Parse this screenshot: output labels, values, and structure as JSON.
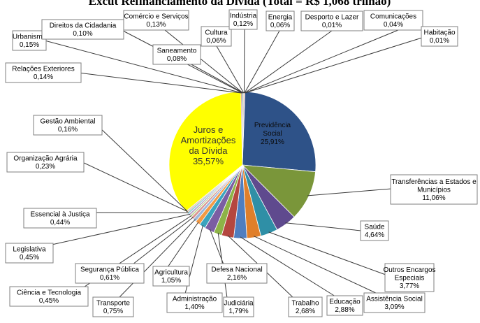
{
  "chart_data": {
    "type": "pie",
    "title": "Excut Refinanciamento da Dívida (Total = R$ 1,068 trilhão)",
    "slices": [
      {
        "label": "Previdência Social",
        "value": 25.91,
        "value_text": "25,91%",
        "color": "#2E5288"
      },
      {
        "label": "Transferências a Estados e Municípios",
        "value": 11.06,
        "value_text": "11,06%",
        "color": "#7A963A"
      },
      {
        "label": "Saúde",
        "value": 4.64,
        "value_text": "4,64%",
        "color": "#5F4A8E"
      },
      {
        "label": "Outros Encargos Especiais",
        "value": 3.77,
        "value_text": "3,77%",
        "color": "#2F8FA6"
      },
      {
        "label": "Assistência Social",
        "value": 3.09,
        "value_text": "3,09%",
        "color": "#E07F2A"
      },
      {
        "label": "Educação",
        "value": 2.88,
        "value_text": "2,88%",
        "color": "#4F7EC0"
      },
      {
        "label": "Trabalho",
        "value": 2.68,
        "value_text": "2,68%",
        "color": "#B5473F"
      },
      {
        "label": "Judiciária",
        "value": 1.79,
        "value_text": "1,79%",
        "color": "#8DB347"
      },
      {
        "label": "Defesa Nacional",
        "value": 2.16,
        "value_text": "2,16%",
        "color": "#7B5EA3"
      },
      {
        "label": "Administração",
        "value": 1.4,
        "value_text": "1,40%",
        "color": "#3AA3BE"
      },
      {
        "label": "Agricultura",
        "value": 1.05,
        "value_text": "1,05%",
        "color": "#F39A45"
      },
      {
        "label": "Transporte",
        "value": 0.75,
        "value_text": "0,75%",
        "color": "#9DB8DC"
      },
      {
        "label": "Segurança Pública",
        "value": 0.61,
        "value_text": "0,61%",
        "color": "#D99592"
      },
      {
        "label": "Ciência e Tecnologia",
        "value": 0.45,
        "value_text": "0,45%",
        "color": "#C2D69B"
      },
      {
        "label": "Legislativa",
        "value": 0.45,
        "value_text": "0,45%",
        "color": "#B3A2C7"
      },
      {
        "label": "Essencial à Justiça",
        "value": 0.44,
        "value_text": "0,44%",
        "color": "#92CDDC"
      },
      {
        "label": "Organização Agrária",
        "value": 0.23,
        "value_text": "0,23%",
        "color": "#FAC090"
      },
      {
        "label": "Gestão Ambiental",
        "value": 0.16,
        "value_text": "0,16%",
        "color": "#95B3D7"
      },
      {
        "label": "Juros e Amortizações da Dívida",
        "value": 35.57,
        "value_text": "35,57%",
        "color": "#FFFF00"
      },
      {
        "label": "Relações Exteriores",
        "value": 0.14,
        "value_text": "0,14%",
        "color": "#C0504D"
      },
      {
        "label": "Urbanismo",
        "value": 0.15,
        "value_text": "0,15%",
        "color": "#9BBB59"
      },
      {
        "label": "Direitos da Cidadania",
        "value": 0.1,
        "value_text": "0,10%",
        "color": "#8064A2"
      },
      {
        "label": "Comércio e Serviços",
        "value": 0.13,
        "value_text": "0,13%",
        "color": "#4BACC6"
      },
      {
        "label": "Saneamento",
        "value": 0.08,
        "value_text": "0,08%",
        "color": "#F79646"
      },
      {
        "label": "Cultura",
        "value": 0.06,
        "value_text": "0,06%",
        "color": "#4F81BD"
      },
      {
        "label": "Indústria",
        "value": 0.12,
        "value_text": "0,12%",
        "color": "#C0504D"
      },
      {
        "label": "Energia",
        "value": 0.06,
        "value_text": "0,06%",
        "color": "#9BBB59"
      },
      {
        "label": "Desporto e Lazer",
        "value": 0.01,
        "value_text": "0,01%",
        "color": "#8064A2"
      },
      {
        "label": "Comunicações",
        "value": 0.04,
        "value_text": "0,04%",
        "color": "#4BACC6"
      },
      {
        "label": "Habitação",
        "value": 0.01,
        "value_text": "0,01%",
        "color": "#F79646"
      }
    ]
  }
}
